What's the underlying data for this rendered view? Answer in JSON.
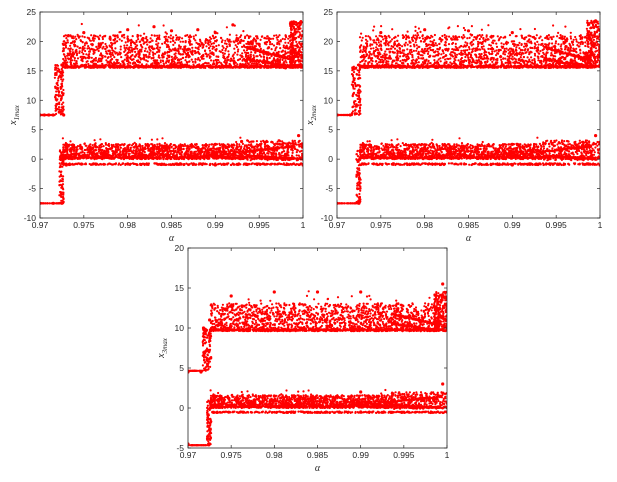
{
  "chart_data": [
    {
      "type": "scatter",
      "xlabel": "α",
      "ylabel": {
        "base": "x",
        "sub": "1max"
      },
      "xlim": [
        0.97,
        1.0
      ],
      "ylim": [
        -10,
        25
      ],
      "xticks": [
        "0.97",
        "0.975",
        "0.98",
        "0.985",
        "0.99",
        "0.995",
        "1"
      ],
      "yticks": [
        "-10",
        "-5",
        "0",
        "5",
        "10",
        "15",
        "20",
        "25"
      ],
      "marker_color": "#ff0000",
      "grid": false,
      "series": [
        {
          "points": [
            [
              0.97,
              7.5
            ],
            [
              0.9705,
              7.5
            ],
            [
              0.971,
              7.5
            ],
            [
              0.9715,
              7.5
            ],
            [
              0.9718,
              15.5
            ],
            [
              0.972,
              12.0
            ],
            [
              0.9722,
              8.0
            ],
            [
              0.9724,
              14.0
            ],
            [
              0.9725,
              16.0
            ],
            [
              0.9727,
              7.5
            ],
            [
              0.973,
              16.0
            ],
            [
              0.975,
              21.5
            ],
            [
              0.978,
              20.5
            ],
            [
              0.98,
              22.0
            ],
            [
              0.983,
              22.5
            ],
            [
              0.985,
              21.8
            ],
            [
              0.988,
              22.0
            ],
            [
              0.99,
              21.5
            ],
            [
              0.992,
              22.8
            ],
            [
              0.995,
              19.5
            ],
            [
              0.9965,
              16.5
            ],
            [
              0.998,
              15.5
            ],
            [
              0.9995,
              22.5
            ],
            [
              1.0,
              21.0
            ]
          ]
        },
        {
          "points": [
            [
              0.97,
              -7.5
            ],
            [
              0.9715,
              -7.5
            ],
            [
              0.9725,
              -7.5
            ],
            [
              0.9726,
              0.0
            ],
            [
              0.973,
              1.5
            ],
            [
              0.976,
              1.8
            ],
            [
              0.98,
              2.0
            ],
            [
              0.984,
              2.2
            ],
            [
              0.988,
              2.0
            ],
            [
              0.99,
              2.5
            ],
            [
              0.993,
              3.0
            ],
            [
              0.995,
              0.5
            ],
            [
              0.998,
              0.8
            ],
            [
              0.9995,
              4.0
            ],
            [
              0.973,
              -1.0
            ],
            [
              0.98,
              -0.8
            ],
            [
              0.99,
              -1.0
            ],
            [
              1.0,
              -1.0
            ]
          ]
        }
      ]
    },
    {
      "type": "scatter",
      "xlabel": "α",
      "ylabel": {
        "base": "x",
        "sub": "2max"
      },
      "xlim": [
        0.97,
        1.0
      ],
      "ylim": [
        -10,
        25
      ],
      "xticks": [
        "0.97",
        "0.975",
        "0.98",
        "0.985",
        "0.99",
        "0.995",
        "1"
      ],
      "yticks": [
        "-10",
        "-5",
        "0",
        "5",
        "10",
        "15",
        "20",
        "25"
      ],
      "marker_color": "#ff0000",
      "grid": false,
      "series": [
        {
          "points": [
            [
              0.97,
              7.5
            ],
            [
              0.9715,
              7.5
            ],
            [
              0.9718,
              15.5
            ],
            [
              0.9722,
              9.0
            ],
            [
              0.9725,
              16.0
            ],
            [
              0.975,
              21.5
            ],
            [
              0.98,
              22.0
            ],
            [
              0.985,
              21.8
            ],
            [
              0.99,
              21.5
            ],
            [
              0.9995,
              23.5
            ],
            [
              1.0,
              21.0
            ]
          ]
        },
        {
          "points": [
            [
              0.97,
              -7.5
            ],
            [
              0.9725,
              -7.5
            ],
            [
              0.9726,
              0.0
            ],
            [
              0.98,
              2.0
            ],
            [
              0.99,
              2.5
            ],
            [
              0.9995,
              4.0
            ],
            [
              0.99,
              -1.0
            ],
            [
              1.0,
              -1.0
            ]
          ]
        }
      ]
    },
    {
      "type": "scatter",
      "xlabel": "α",
      "ylabel": {
        "base": "x",
        "sub": "3max"
      },
      "xlim": [
        0.97,
        1.0
      ],
      "ylim": [
        -5,
        20
      ],
      "xticks": [
        "0.97",
        "0.975",
        "0.98",
        "0.985",
        "0.99",
        "0.995",
        "1"
      ],
      "yticks": [
        "-5",
        "0",
        "5",
        "10",
        "15",
        "20"
      ],
      "marker_color": "#ff0000",
      "grid": false,
      "series": [
        {
          "points": [
            [
              0.97,
              4.5
            ],
            [
              0.9715,
              4.5
            ],
            [
              0.9718,
              10.0
            ],
            [
              0.9722,
              6.0
            ],
            [
              0.9725,
              11.0
            ],
            [
              0.975,
              14.0
            ],
            [
              0.98,
              14.5
            ],
            [
              0.985,
              14.5
            ],
            [
              0.99,
              14.5
            ],
            [
              0.9995,
              15.5
            ],
            [
              1.0,
              13.0
            ]
          ]
        },
        {
          "points": [
            [
              0.97,
              -4.5
            ],
            [
              0.9725,
              -4.5
            ],
            [
              0.9726,
              0.0
            ],
            [
              0.98,
              1.5
            ],
            [
              0.99,
              2.0
            ],
            [
              0.9995,
              3.0
            ],
            [
              0.99,
              -0.5
            ],
            [
              1.0,
              -0.5
            ]
          ]
        }
      ]
    }
  ]
}
